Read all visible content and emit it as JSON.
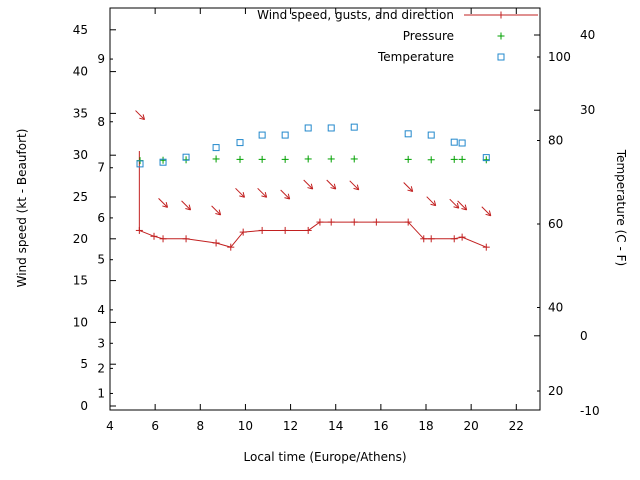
{
  "chart_data": {
    "type": "line",
    "title": "",
    "xlabel": "Local time (Europe/Athens)",
    "ylabel_left": "Wind speed (kt - Beaufort)",
    "ylabel_right": "Temperature (C - F)",
    "x_range": [
      4,
      23.05
    ],
    "x_ticks": [
      4,
      6,
      8,
      10,
      12,
      14,
      16,
      18,
      20,
      22
    ],
    "kt_ticks": [
      0,
      5,
      10,
      15,
      20,
      25,
      30,
      35,
      40,
      45
    ],
    "beaufort_ticks": [
      {
        "label": "1",
        "kt": 1.5
      },
      {
        "label": "2",
        "kt": 4.5
      },
      {
        "label": "3",
        "kt": 7.5
      },
      {
        "label": "4",
        "kt": 11.5
      },
      {
        "label": "5",
        "kt": 17.5
      },
      {
        "label": "6",
        "kt": 22.5
      },
      {
        "label": "7",
        "kt": 28.5
      },
      {
        "label": "8",
        "kt": 34
      },
      {
        "label": "9",
        "kt": 41.5
      }
    ],
    "c_ticks": [
      40,
      30,
      0,
      -10
    ],
    "f_ticks": [
      100,
      80,
      60,
      40,
      20
    ],
    "series": {
      "wind": {
        "name": "Wind speed, gusts, and direction",
        "color": "#c22020",
        "t": [
          5.3,
          5.95,
          6.35,
          7.37,
          8.7,
          9.35,
          9.9,
          10.74,
          11.76,
          12.78,
          13.3,
          13.8,
          14.82,
          15.8,
          17.21,
          17.9,
          18.23,
          19.25,
          19.6,
          20.67
        ],
        "kt": [
          21,
          20.3,
          20,
          20,
          19.5,
          19,
          20.8,
          21,
          21,
          21,
          22,
          22,
          22,
          22,
          22,
          20,
          20,
          20,
          20.2,
          19
        ],
        "gust": {
          "t": 5.3,
          "from": 21,
          "to": 30.5
        }
      },
      "arrows": {
        "name": "Wind direction",
        "color": "#c22020",
        "t": [
          5.33,
          6.35,
          7.37,
          8.7,
          9.76,
          10.74,
          11.76,
          12.78,
          13.8,
          14.82,
          17.21,
          18.23,
          19.25,
          19.6,
          20.67
        ],
        "kt": [
          34.8,
          24.3,
          24,
          23.4,
          25.5,
          25.5,
          25.3,
          26.5,
          26.5,
          26.4,
          26.2,
          24.5,
          24.2,
          24,
          23.3
        ]
      },
      "pressure": {
        "name": "Pressure",
        "color": "#00a000",
        "t": [
          5.33,
          6.35,
          7.37,
          8.7,
          9.76,
          10.74,
          11.76,
          12.78,
          13.8,
          14.82,
          17.21,
          18.23,
          19.25,
          19.6,
          20.67
        ],
        "v": [
          29.35,
          29.4,
          29.45,
          29.55,
          29.5,
          29.5,
          29.5,
          29.55,
          29.55,
          29.55,
          29.5,
          29.45,
          29.5,
          29.5,
          29.45
        ]
      },
      "temperature": {
        "name": "Temperature",
        "color": "#2288cc",
        "axis": "F",
        "t": [
          5.33,
          6.35,
          7.37,
          8.7,
          9.76,
          10.74,
          11.76,
          12.78,
          13.8,
          14.82,
          17.21,
          18.23,
          19.25,
          19.6,
          20.67
        ],
        "f": [
          74.4,
          74.8,
          76,
          78.3,
          79.5,
          81.3,
          81.3,
          83,
          83,
          83.2,
          81.6,
          81.3,
          79.6,
          79.4,
          75.9
        ]
      }
    },
    "legend": [
      {
        "label": "Wind speed, gusts, and direction",
        "sample": "line-cross",
        "color": "#c22020"
      },
      {
        "label": "Pressure",
        "sample": "cross",
        "color": "#00a000"
      },
      {
        "label": "Temperature",
        "sample": "square",
        "color": "#2288cc"
      }
    ]
  }
}
